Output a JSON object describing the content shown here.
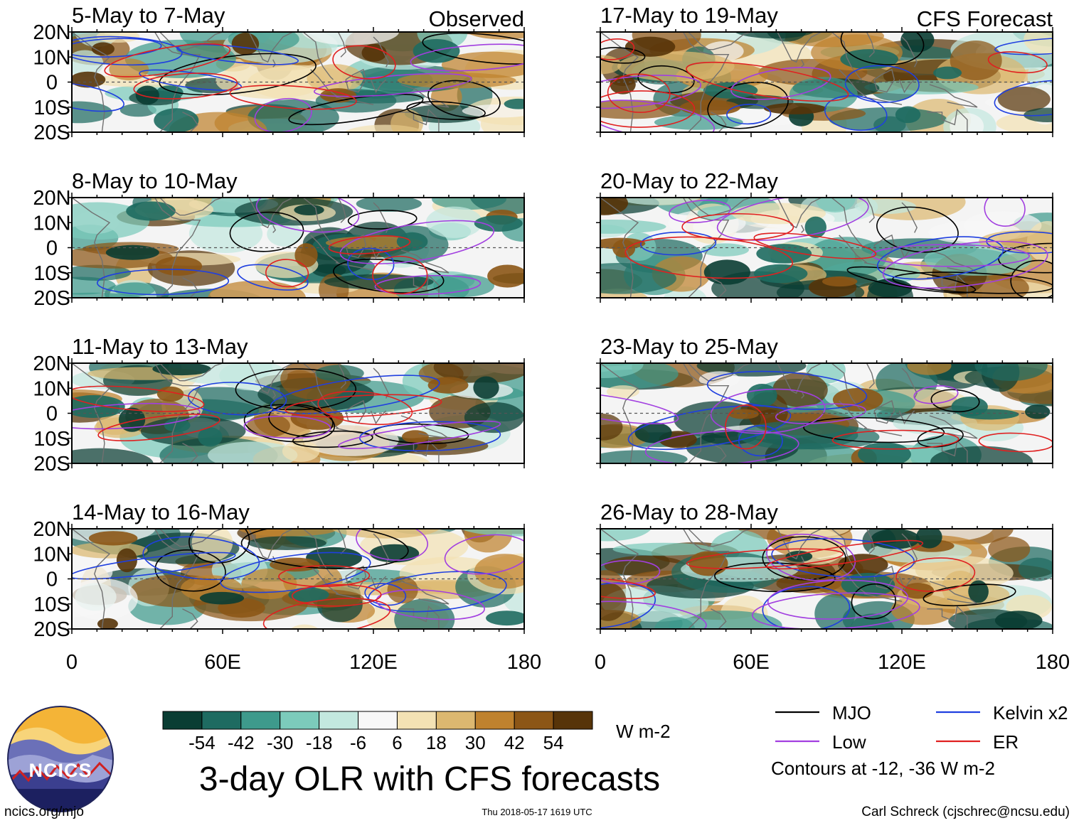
{
  "chart_data": {
    "type": "heatmap",
    "title": "3-day OLR with CFS forecasts",
    "colorbar": {
      "units": "W m-2",
      "ticks": [
        "-54",
        "-42",
        "-30",
        "-18",
        "-6",
        "6",
        "18",
        "30",
        "42",
        "54"
      ],
      "colors": [
        "#0a3d33",
        "#1e6b61",
        "#3e9a8c",
        "#7ccbbb",
        "#c3e8df",
        "#f7f7f7",
        "#f3e2b4",
        "#dcb870",
        "#bf822e",
        "#8c5616",
        "#573409"
      ]
    },
    "x_ticks": [
      "0",
      "60E",
      "120E",
      "180"
    ],
    "y_ticks": [
      "20N",
      "10N",
      "0",
      "10S",
      "20S"
    ],
    "xlim": [
      0,
      180
    ],
    "ylim": [
      -20,
      20
    ],
    "columns": [
      {
        "header": "Observed",
        "panels": [
          "5-May to 7-May",
          "8-May to 10-May",
          "11-May to 13-May",
          "14-May to 16-May"
        ]
      },
      {
        "header": "CFS Forecast",
        "panels": [
          "17-May to 19-May",
          "20-May to 22-May",
          "23-May to 25-May",
          "26-May to 28-May"
        ]
      }
    ],
    "contour_legend": [
      {
        "label": "MJO",
        "color": "#000000"
      },
      {
        "label": "Kelvin x2",
        "color": "#1f3fe0"
      },
      {
        "label": "Low",
        "color": "#a23fe0"
      },
      {
        "label": "ER",
        "color": "#e02020"
      }
    ],
    "contour_note": "Contours at -12, -36 W m-2"
  },
  "footer": {
    "logo_text": "NCICS",
    "url": "ncics.org/mjo",
    "timestamp": "Thu 2018-05-17 1619 UTC",
    "credit": "Carl Schreck (cjschrec@ncsu.edu)"
  }
}
